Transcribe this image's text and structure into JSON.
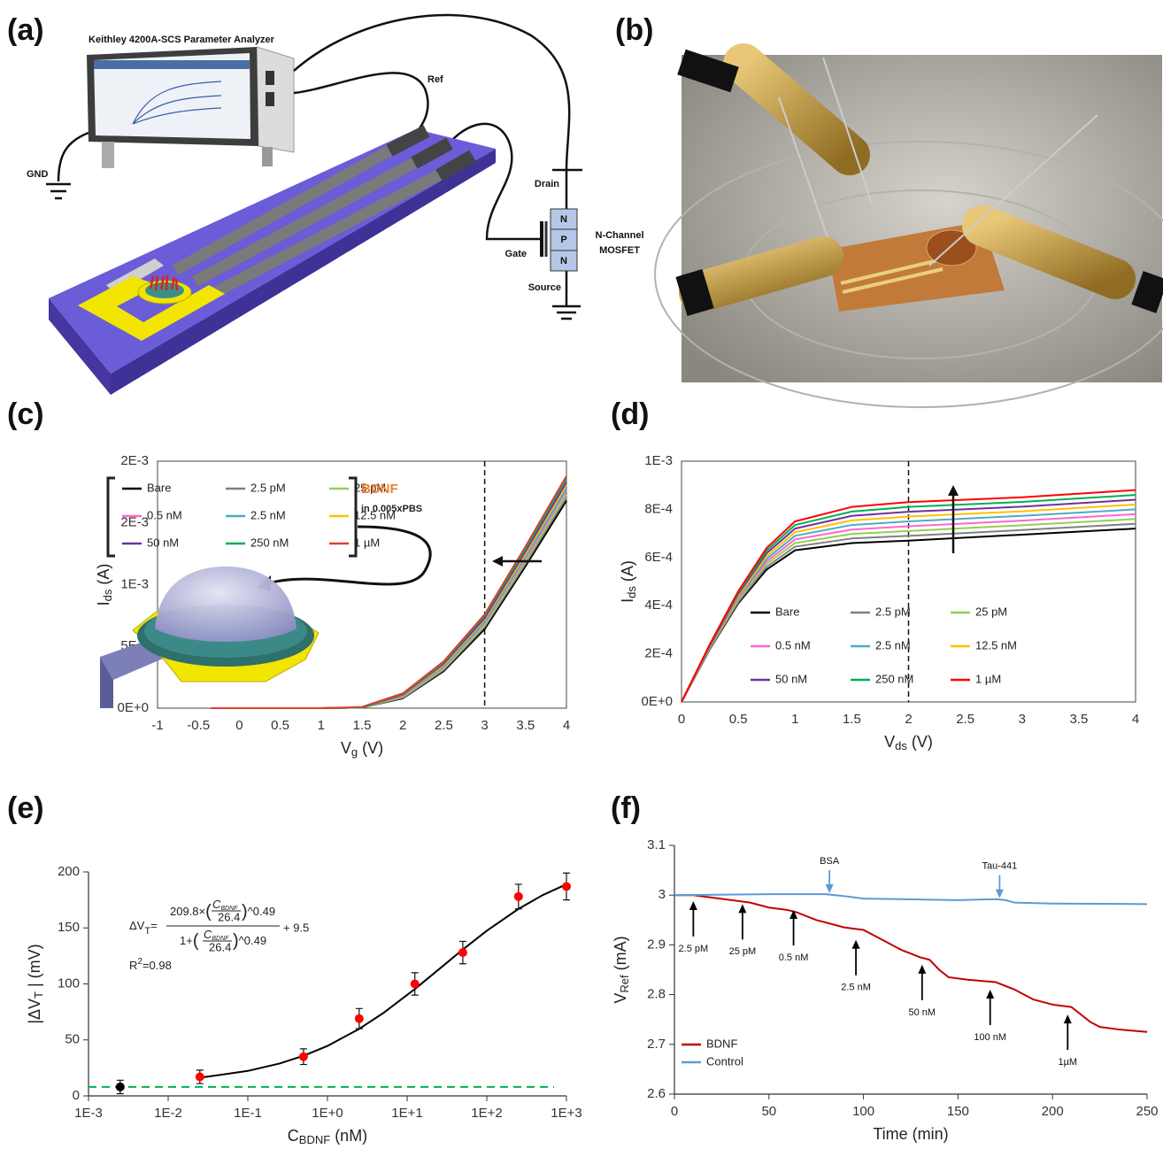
{
  "diagram": {
    "panel_label": "(a)",
    "instrument": "Keithley 4200A-SCS Parameter Analyzer",
    "ref": "Ref",
    "gnd": "GND",
    "drain": "Drain",
    "gate": "Gate",
    "source": "Source",
    "n_top": "N",
    "p": "P",
    "n_bottom": "N",
    "channel_type": "N-Channel",
    "device": "MOSFET"
  },
  "photo": {
    "panel_label": "(b)"
  },
  "chart_data": [
    {
      "type": "line",
      "panel_label": "(c)",
      "xlabel": {
        "text": "V",
        "sub": "g",
        "unit": "(V)"
      },
      "ylabel": {
        "text": "I",
        "sub": "ds",
        "unit": "(A)"
      },
      "x": [
        -0.35,
        0,
        0.5,
        1,
        1.5,
        2,
        2.5,
        3,
        3.5,
        4
      ],
      "series": [
        {
          "name": "Bare",
          "color": "#000000",
          "values": [
            0,
            0,
            0,
            0,
            5e-06,
            8e-05,
            0.0003,
            0.00064,
            0.00115,
            0.00168
          ]
        },
        {
          "name": "2.5 pM",
          "color": "#808080",
          "values": [
            0,
            0,
            0,
            0,
            5e-06,
            8.5e-05,
            0.00031,
            0.00066,
            0.00117,
            0.00171
          ]
        },
        {
          "name": "25 pM",
          "color": "#92d050",
          "values": [
            0,
            0,
            0,
            0,
            5e-06,
            9e-05,
            0.00032,
            0.00067,
            0.00119,
            0.00173
          ]
        },
        {
          "name": "0.5 nM",
          "color": "#ff66cc",
          "values": [
            0,
            0,
            0,
            0,
            5e-06,
            9.5e-05,
            0.00033,
            0.00069,
            0.00121,
            0.00176
          ]
        },
        {
          "name": "2.5 nM",
          "color": "#4bacc6",
          "values": [
            0,
            0,
            0,
            0,
            5e-06,
            0.0001,
            0.00034,
            0.0007,
            0.00123,
            0.00178
          ]
        },
        {
          "name": "12.5 nM",
          "color": "#ffc000",
          "values": [
            0,
            0,
            0,
            0,
            5e-06,
            0.000105,
            0.00035,
            0.00072,
            0.00125,
            0.00181
          ]
        },
        {
          "name": "50 nM",
          "color": "#7030a0",
          "values": [
            0,
            0,
            0,
            0,
            5e-06,
            0.00011,
            0.00036,
            0.00073,
            0.00127,
            0.00183
          ]
        },
        {
          "name": "250 nM",
          "color": "#00b050",
          "values": [
            0,
            0,
            0,
            0,
            5e-06,
            0.000115,
            0.00037,
            0.00075,
            0.00129,
            0.00186
          ]
        },
        {
          "name": "1 µM",
          "color": "#e03c31",
          "values": [
            0,
            0,
            0,
            0,
            1e-05,
            0.00012,
            0.00038,
            0.00076,
            0.00131,
            0.00188
          ]
        }
      ],
      "xlim": [
        -1,
        4
      ],
      "xticks": [
        -1,
        -0.5,
        0,
        0.5,
        1,
        1.5,
        2,
        2.5,
        3,
        3.5,
        4
      ],
      "ylim": [
        0,
        0.002
      ],
      "yticks": [
        {
          "value": 0,
          "label": "0E+0"
        },
        {
          "value": 0.0005,
          "label": "5E-4"
        },
        {
          "value": 0.001,
          "label": "1E-3"
        },
        {
          "value": 0.0015,
          "label": "2E-3"
        },
        {
          "value": 0.002,
          "label": "2E-3"
        }
      ],
      "vline": 3,
      "frame": true,
      "legend": "upper left",
      "legend_columns": 3,
      "inset_title": "BDNF",
      "inset_subtitle": "in 0.005xPBS"
    },
    {
      "type": "line",
      "panel_label": "(d)",
      "xlabel": {
        "text": "V",
        "sub": "ds",
        "unit": "(V)"
      },
      "ylabel": {
        "text": "I",
        "sub": "ds",
        "unit": "(A)"
      },
      "x": [
        0,
        0.25,
        0.5,
        0.75,
        1,
        1.5,
        2,
        3,
        4
      ],
      "series": [
        {
          "name": "Bare",
          "color": "#000000",
          "values": [
            0,
            0.00022,
            0.00041,
            0.00055,
            0.00063,
            0.00066,
            0.00067,
            0.000695,
            0.00072
          ]
        },
        {
          "name": "2.5 pM",
          "color": "#808080",
          "values": [
            0,
            0.000223,
            0.000416,
            0.000561,
            0.000645,
            0.000679,
            0.00069,
            0.000714,
            0.00074
          ]
        },
        {
          "name": "25 pM",
          "color": "#92d050",
          "values": [
            0,
            0.000225,
            0.000423,
            0.000573,
            0.00066,
            0.000698,
            0.00071,
            0.000734,
            0.00076
          ]
        },
        {
          "name": "0.5 nM",
          "color": "#ff66cc",
          "values": [
            0,
            0.000228,
            0.000429,
            0.000584,
            0.000675,
            0.000716,
            0.00073,
            0.000753,
            0.00078
          ]
        },
        {
          "name": "2.5 nM",
          "color": "#4bacc6",
          "values": [
            0,
            0.00023,
            0.000435,
            0.000595,
            0.00069,
            0.000735,
            0.00075,
            0.000773,
            0.0008
          ]
        },
        {
          "name": "12.5 nM",
          "color": "#ffc000",
          "values": [
            0,
            0.000233,
            0.000441,
            0.000606,
            0.000705,
            0.000754,
            0.00077,
            0.000792,
            0.00082
          ]
        },
        {
          "name": "50 nM",
          "color": "#7030a0",
          "values": [
            0,
            0.000235,
            0.000448,
            0.000618,
            0.00072,
            0.000773,
            0.00079,
            0.000811,
            0.00084
          ]
        },
        {
          "name": "250 nM",
          "color": "#00b050",
          "values": [
            0,
            0.000238,
            0.000454,
            0.000629,
            0.000735,
            0.000791,
            0.00081,
            0.000831,
            0.00086
          ]
        },
        {
          "name": "1 µM",
          "color": "#ff0000",
          "values": [
            0,
            0.00024,
            0.00046,
            0.00064,
            0.00075,
            0.00081,
            0.00083,
            0.00085,
            0.00088
          ]
        }
      ],
      "xlim": [
        0,
        4
      ],
      "xticks": [
        0,
        0.5,
        1,
        1.5,
        2,
        2.5,
        3,
        3.5,
        4
      ],
      "ylim": [
        0,
        0.001
      ],
      "yticks": [
        {
          "value": 0,
          "label": "0E+0"
        },
        {
          "value": 0.0002,
          "label": "2E-4"
        },
        {
          "value": 0.0004,
          "label": "4E-4"
        },
        {
          "value": 0.0006,
          "label": "6E-4"
        },
        {
          "value": 0.0008,
          "label": "8E-4"
        },
        {
          "value": 0.001,
          "label": "1E-3"
        }
      ],
      "vline": 2,
      "frame": true,
      "legend": "lower right",
      "legend_columns": 3
    },
    {
      "type": "scatter",
      "panel_label": "(e)",
      "xlabel": {
        "text": "C",
        "sub": "BDNF",
        "unit": "(nM)"
      },
      "ylabel": {
        "text": "|ΔV",
        "sub": "T",
        "unit": "| (mV)"
      },
      "series": [
        {
          "type": "line",
          "color": "#000000",
          "x": [
            0.025,
            0.1,
            0.25,
            0.5,
            1,
            2.5,
            5,
            12.5,
            25,
            50,
            100,
            250,
            500,
            1000
          ],
          "values": [
            16.2,
            22.3,
            28.9,
            35.8,
            44.6,
            59.8,
            73.9,
            95.4,
            113,
            130.7,
            147.5,
            167,
            179.2,
            189
          ]
        },
        {
          "type": "scatter",
          "color": "#000000",
          "x": [
            0.0025
          ],
          "values": [
            8
          ],
          "errors": [
            6
          ]
        },
        {
          "type": "scatter",
          "color": "#ff0000",
          "x": [
            0.025,
            0.5,
            2.5,
            12.5,
            50,
            250,
            1000
          ],
          "values": [
            17,
            35,
            69,
            100,
            128,
            178,
            187
          ],
          "errors": [
            6,
            7,
            9,
            10,
            10,
            11,
            12
          ]
        }
      ],
      "xscale": "log",
      "xlim": [
        0.001,
        1000
      ],
      "xticks": [
        {
          "value": 0.001,
          "label": "1E-3"
        },
        {
          "value": 0.01,
          "label": "1E-2"
        },
        {
          "value": 0.1,
          "label": "1E-1"
        },
        {
          "value": 1,
          "label": "1E+0"
        },
        {
          "value": 10,
          "label": "1E+1"
        },
        {
          "value": 100,
          "label": "1E+2"
        },
        {
          "value": 1000,
          "label": "1E+3"
        }
      ],
      "ylim": [
        0,
        200
      ],
      "yticks": [
        0,
        50,
        100,
        150,
        200
      ],
      "hline": {
        "value": 8,
        "from": 0.001,
        "to": 700,
        "color": "#00b050"
      },
      "tick_marks": true,
      "equation": {
        "lhs": "ΔV",
        "lhs_sub": "T",
        "eq": "=",
        "num_coef": "209.8×",
        "paren_open": "(",
        "var": "C",
        "var_sub": "BDNF",
        "divisor": "26.4",
        "paren_close": ")",
        "exponent": "^0.49",
        "den_coef": "1+",
        "tail": "+ 9.5"
      },
      "r2": {
        "main": "R",
        "sup": "2",
        "text": "=0.98"
      }
    },
    {
      "type": "line",
      "panel_label": "(f)",
      "xlabel": {
        "text": "Time (min)"
      },
      "ylabel": {
        "text": "V",
        "sub": "Ref",
        "unit": "(mA)"
      },
      "series": [
        {
          "name": "BDNF",
          "color": "#c00000",
          "x": [
            0,
            10,
            20,
            30,
            40,
            50,
            60,
            65,
            75,
            90,
            100,
            110,
            120,
            130,
            135,
            140,
            145,
            155,
            170,
            180,
            190,
            200,
            210,
            220,
            225,
            235,
            250
          ],
          "values": [
            3,
            3,
            2.995,
            2.99,
            2.985,
            2.975,
            2.97,
            2.965,
            2.95,
            2.935,
            2.93,
            2.91,
            2.89,
            2.875,
            2.87,
            2.85,
            2.835,
            2.83,
            2.825,
            2.81,
            2.79,
            2.78,
            2.775,
            2.745,
            2.735,
            2.73,
            2.725
          ]
        },
        {
          "name": "Control",
          "color": "#5b9bd5",
          "x": [
            0,
            50,
            80,
            90,
            100,
            150,
            170,
            175,
            180,
            200,
            250
          ],
          "values": [
            3,
            3.002,
            3.002,
            2.998,
            2.993,
            2.99,
            2.992,
            2.99,
            2.985,
            2.983,
            2.982
          ]
        }
      ],
      "xlim": [
        0,
        250
      ],
      "xticks": [
        0,
        50,
        100,
        150,
        200,
        250
      ],
      "ylim": [
        2.6,
        3.1
      ],
      "yticks": [
        2.6,
        2.7,
        2.8,
        2.9,
        3,
        3.1
      ],
      "tick_marks": true,
      "legend": "lower left",
      "legend_columns": 1,
      "annotations": [
        {
          "text": "BSA",
          "x": 82,
          "y": 3.004,
          "direction": "down",
          "color": "#5b9bd5"
        },
        {
          "text": "Tau-441",
          "x": 172,
          "y": 2.994,
          "direction": "down",
          "color": "#5b9bd5"
        },
        {
          "text": "2.5 pM",
          "x": 10,
          "y": 2.988,
          "direction": "up",
          "color": "#000000"
        },
        {
          "text": "25 pM",
          "x": 36,
          "y": 2.982,
          "direction": "up",
          "color": "#000000"
        },
        {
          "text": "0.5 nM",
          "x": 63,
          "y": 2.97,
          "direction": "up",
          "color": "#000000"
        },
        {
          "text": "2.5 nM",
          "x": 96,
          "y": 2.91,
          "direction": "up",
          "color": "#000000"
        },
        {
          "text": "50 nM",
          "x": 131,
          "y": 2.86,
          "direction": "up",
          "color": "#000000"
        },
        {
          "text": "100 nM",
          "x": 167,
          "y": 2.81,
          "direction": "up",
          "color": "#000000"
        },
        {
          "text": "1µM",
          "x": 208,
          "y": 2.76,
          "direction": "up",
          "color": "#000000"
        }
      ]
    }
  ]
}
